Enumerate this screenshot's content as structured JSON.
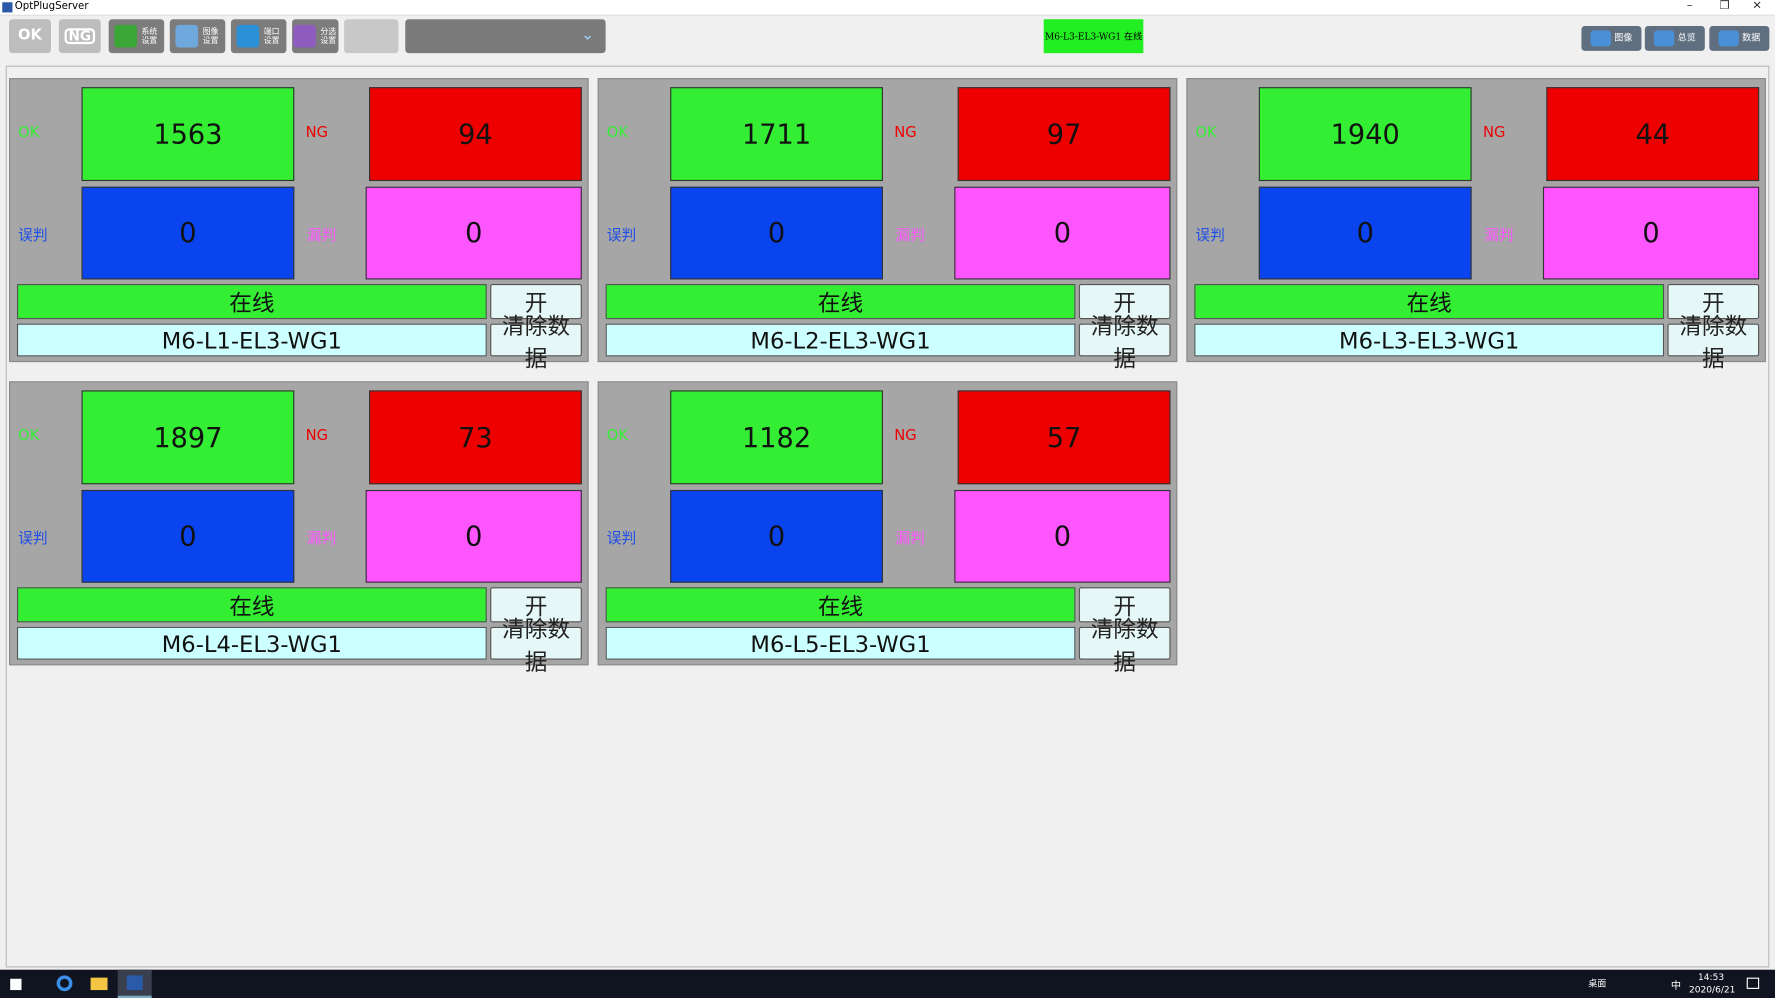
{
  "window": {
    "title": "OptPlugServer"
  },
  "toolbar": {
    "ok": "OK",
    "ng": "NG",
    "buttons": [
      "系统设置",
      "图像设置",
      "端口设置",
      "分选设置"
    ],
    "status": "M6-L3-EL3-WG1 在线",
    "right_buttons": [
      "图像",
      "总览",
      "数据"
    ]
  },
  "cards": [
    {
      "ok_label": "OK",
      "ok": 1563,
      "ng_label": "NG",
      "ng": 94,
      "wrong_label": "误判",
      "wrong": 0,
      "missed_label": "漏判",
      "missed": 0,
      "status": "在线",
      "toggle": "开",
      "name": "M6-L1-EL3-WG1",
      "clear": "清除数据"
    },
    {
      "ok_label": "OK",
      "ok": 1711,
      "ng_label": "NG",
      "ng": 97,
      "wrong_label": "误判",
      "wrong": 0,
      "missed_label": "漏判",
      "missed": 0,
      "status": "在线",
      "toggle": "开",
      "name": "M6-L2-EL3-WG1",
      "clear": "清除数据"
    },
    {
      "ok_label": "OK",
      "ok": 1940,
      "ng_label": "NG",
      "ng": 44,
      "wrong_label": "误判",
      "wrong": 0,
      "missed_label": "漏判",
      "missed": 0,
      "status": "在线",
      "toggle": "开",
      "name": "M6-L3-EL3-WG1",
      "clear": "清除数据"
    },
    {
      "ok_label": "OK",
      "ok": 1897,
      "ng_label": "NG",
      "ng": 73,
      "wrong_label": "误判",
      "wrong": 0,
      "missed_label": "漏判",
      "missed": 0,
      "status": "在线",
      "toggle": "开",
      "name": "M6-L4-EL3-WG1",
      "clear": "清除数据"
    },
    {
      "ok_label": "OK",
      "ok": 1182,
      "ng_label": "NG",
      "ng": 57,
      "wrong_label": "误判",
      "wrong": 0,
      "missed_label": "漏判",
      "missed": 0,
      "status": "在线",
      "toggle": "开",
      "name": "M6-L5-EL3-WG1",
      "clear": "清除数据"
    }
  ],
  "taskbar": {
    "desktop": "桌面",
    "ime": "中",
    "time": "14:53",
    "date": "2020/6/21"
  }
}
